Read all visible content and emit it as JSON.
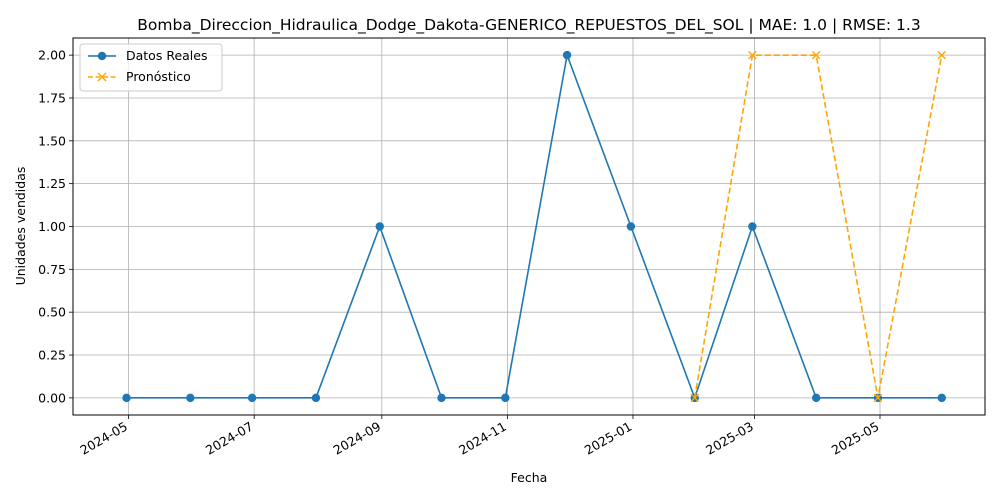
{
  "chart_data": {
    "type": "line",
    "title": "Bomba_Direccion_Hidraulica_Dodge_Dakota-GENERICO_REPUESTOS_DEL_SOL | MAE: 1.0 | RMSE: 1.3",
    "xlabel": "Fecha",
    "ylabel": "Unidades vendidas",
    "x_ticks": [
      "2024-05",
      "2024-07",
      "2024-09",
      "2024-11",
      "2025-01",
      "2025-03",
      "2025-05"
    ],
    "y_ticks": [
      "0.00",
      "0.25",
      "0.50",
      "0.75",
      "1.00",
      "1.25",
      "1.50",
      "1.75",
      "2.00"
    ],
    "xlim": [
      "2024-04-04",
      "2025-06-21"
    ],
    "ylim": [
      -0.1,
      2.1
    ],
    "grid": true,
    "legend_position": "top-left",
    "series": [
      {
        "name": "Datos Reales",
        "color": "#1f77b4",
        "marker": "circle",
        "line": "solid",
        "x": [
          "2024-04-30",
          "2024-05-31",
          "2024-06-30",
          "2024-07-31",
          "2024-08-31",
          "2024-09-30",
          "2024-10-31",
          "2024-11-30",
          "2024-12-31",
          "2025-01-31",
          "2025-02-28",
          "2025-03-31",
          "2025-04-30",
          "2025-05-31"
        ],
        "values": [
          0,
          0,
          0,
          0,
          1,
          0,
          0,
          2,
          1,
          0,
          1,
          0,
          0,
          0
        ]
      },
      {
        "name": "Pronóstico",
        "color": "#ffa500",
        "marker": "x",
        "line": "dashed",
        "x": [
          "2025-01-31",
          "2025-02-28",
          "2025-03-31",
          "2025-04-30",
          "2025-05-31"
        ],
        "values": [
          0,
          2,
          2,
          0,
          2
        ]
      }
    ]
  }
}
